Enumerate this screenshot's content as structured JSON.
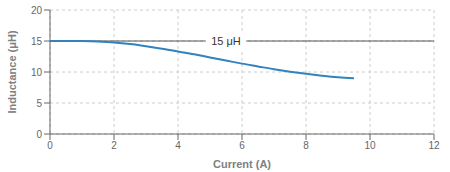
{
  "chart_data": {
    "type": "line",
    "title": "",
    "xlabel": "Current (A)",
    "ylabel": "Inductance (μH)",
    "x": [
      0.0,
      0.3,
      0.6,
      1.0,
      1.5,
      2.0,
      2.5,
      3.0,
      3.5,
      4.0,
      4.5,
      5.0,
      5.5,
      6.0,
      6.5,
      7.0,
      7.5,
      8.0,
      8.5,
      9.0,
      9.5
    ],
    "values": [
      15.0,
      15.0,
      15.0,
      14.98,
      14.9,
      14.75,
      14.5,
      14.15,
      13.75,
      13.3,
      12.85,
      12.35,
      11.85,
      11.35,
      10.9,
      10.45,
      10.05,
      9.7,
      9.4,
      9.15,
      9.0
    ],
    "xlim": [
      0,
      12
    ],
    "ylim": [
      0,
      20
    ],
    "xticks": [
      0,
      2,
      4,
      6,
      8,
      10,
      12
    ],
    "yticks": [
      0,
      5,
      10,
      15,
      20
    ],
    "grid": true,
    "annotations": [
      {
        "text": "15 μH",
        "x": 5.5,
        "y": 15.0
      }
    ]
  }
}
